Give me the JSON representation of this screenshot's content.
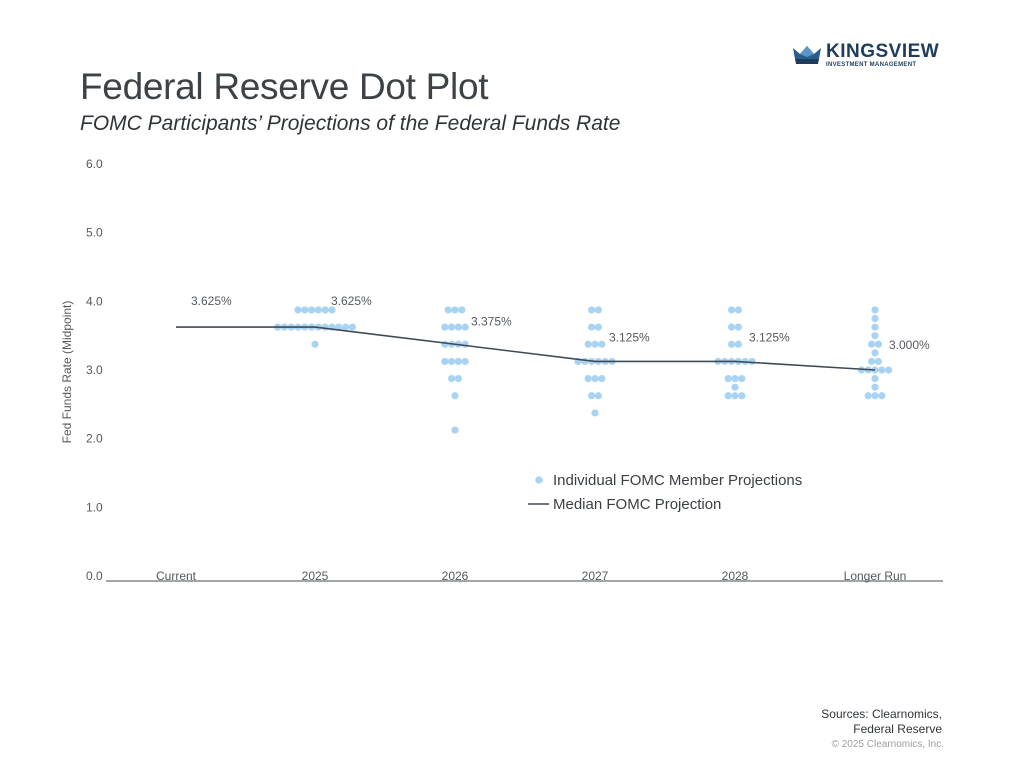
{
  "header": {
    "title": "Federal Reserve Dot Plot",
    "subtitle": "FOMC Participants’ Projections of the Federal Funds Rate"
  },
  "logo": {
    "name": "KINGSVIEW",
    "tagline": "INVESTMENT MANAGEMENT",
    "icon": "crown-icon",
    "color": "#1f3c5c"
  },
  "footer": {
    "sources_line1": "Sources: Clearnomics,",
    "sources_line2": "Federal Reserve",
    "copyright": "© 2025 Clearnomics, Inc."
  },
  "colors": {
    "dot": "#a9d3f2",
    "median_line": "#3f4a56",
    "axis": "#6b7075"
  },
  "chart_data": {
    "type": "scatter",
    "title": "Federal Reserve Dot Plot",
    "subtitle": "FOMC Participants’ Projections of the Federal Funds Rate",
    "xlabel": "",
    "ylabel": "Fed Funds Rate (Midpoint)",
    "ylim": [
      0,
      6
    ],
    "yticks": [
      "0.0",
      "1.0",
      "2.0",
      "3.0",
      "4.0",
      "5.0",
      "6.0"
    ],
    "ytick_values": [
      0,
      1,
      2,
      3,
      4,
      5,
      6
    ],
    "categories": [
      "Current",
      "2025",
      "2026",
      "2027",
      "2028",
      "Longer Run"
    ],
    "grid": false,
    "legend_position": "center-right",
    "legend": [
      {
        "label": "Individual FOMC Member Projections",
        "marker": "dot"
      },
      {
        "label": "Median FOMC Projection",
        "marker": "line"
      }
    ],
    "median": {
      "name": "Median FOMC Projection",
      "values": [
        3.625,
        3.625,
        3.375,
        3.125,
        3.125,
        3.0
      ],
      "labels": [
        "3.625%",
        "3.625%",
        "3.375%",
        "3.125%",
        "3.125%",
        "3.000%"
      ]
    },
    "dots": {
      "name": "Individual FOMC Member Projections",
      "by_category": [
        {
          "category": "Current",
          "counts": []
        },
        {
          "category": "2025",
          "counts": [
            {
              "rate": 3.875,
              "n": 6
            },
            {
              "rate": 3.625,
              "n": 12
            },
            {
              "rate": 3.375,
              "n": 1
            }
          ]
        },
        {
          "category": "2026",
          "counts": [
            {
              "rate": 3.875,
              "n": 3
            },
            {
              "rate": 3.625,
              "n": 4
            },
            {
              "rate": 3.375,
              "n": 4
            },
            {
              "rate": 3.125,
              "n": 4
            },
            {
              "rate": 2.875,
              "n": 2
            },
            {
              "rate": 2.625,
              "n": 1
            },
            {
              "rate": 2.125,
              "n": 1
            }
          ]
        },
        {
          "category": "2027",
          "counts": [
            {
              "rate": 3.875,
              "n": 2
            },
            {
              "rate": 3.625,
              "n": 2
            },
            {
              "rate": 3.375,
              "n": 3
            },
            {
              "rate": 3.125,
              "n": 6
            },
            {
              "rate": 2.875,
              "n": 3
            },
            {
              "rate": 2.625,
              "n": 2
            },
            {
              "rate": 2.375,
              "n": 1
            }
          ]
        },
        {
          "category": "2028",
          "counts": [
            {
              "rate": 3.875,
              "n": 2
            },
            {
              "rate": 3.625,
              "n": 2
            },
            {
              "rate": 3.375,
              "n": 2
            },
            {
              "rate": 3.125,
              "n": 6
            },
            {
              "rate": 2.875,
              "n": 3
            },
            {
              "rate": 2.75,
              "n": 1
            },
            {
              "rate": 2.625,
              "n": 3
            }
          ]
        },
        {
          "category": "Longer Run",
          "counts": [
            {
              "rate": 3.875,
              "n": 1
            },
            {
              "rate": 3.75,
              "n": 1
            },
            {
              "rate": 3.625,
              "n": 1
            },
            {
              "rate": 3.5,
              "n": 1
            },
            {
              "rate": 3.375,
              "n": 2
            },
            {
              "rate": 3.25,
              "n": 1
            },
            {
              "rate": 3.125,
              "n": 2
            },
            {
              "rate": 3.0,
              "n": 5
            },
            {
              "rate": 2.875,
              "n": 1
            },
            {
              "rate": 2.75,
              "n": 1
            },
            {
              "rate": 2.625,
              "n": 3
            }
          ]
        }
      ]
    }
  }
}
